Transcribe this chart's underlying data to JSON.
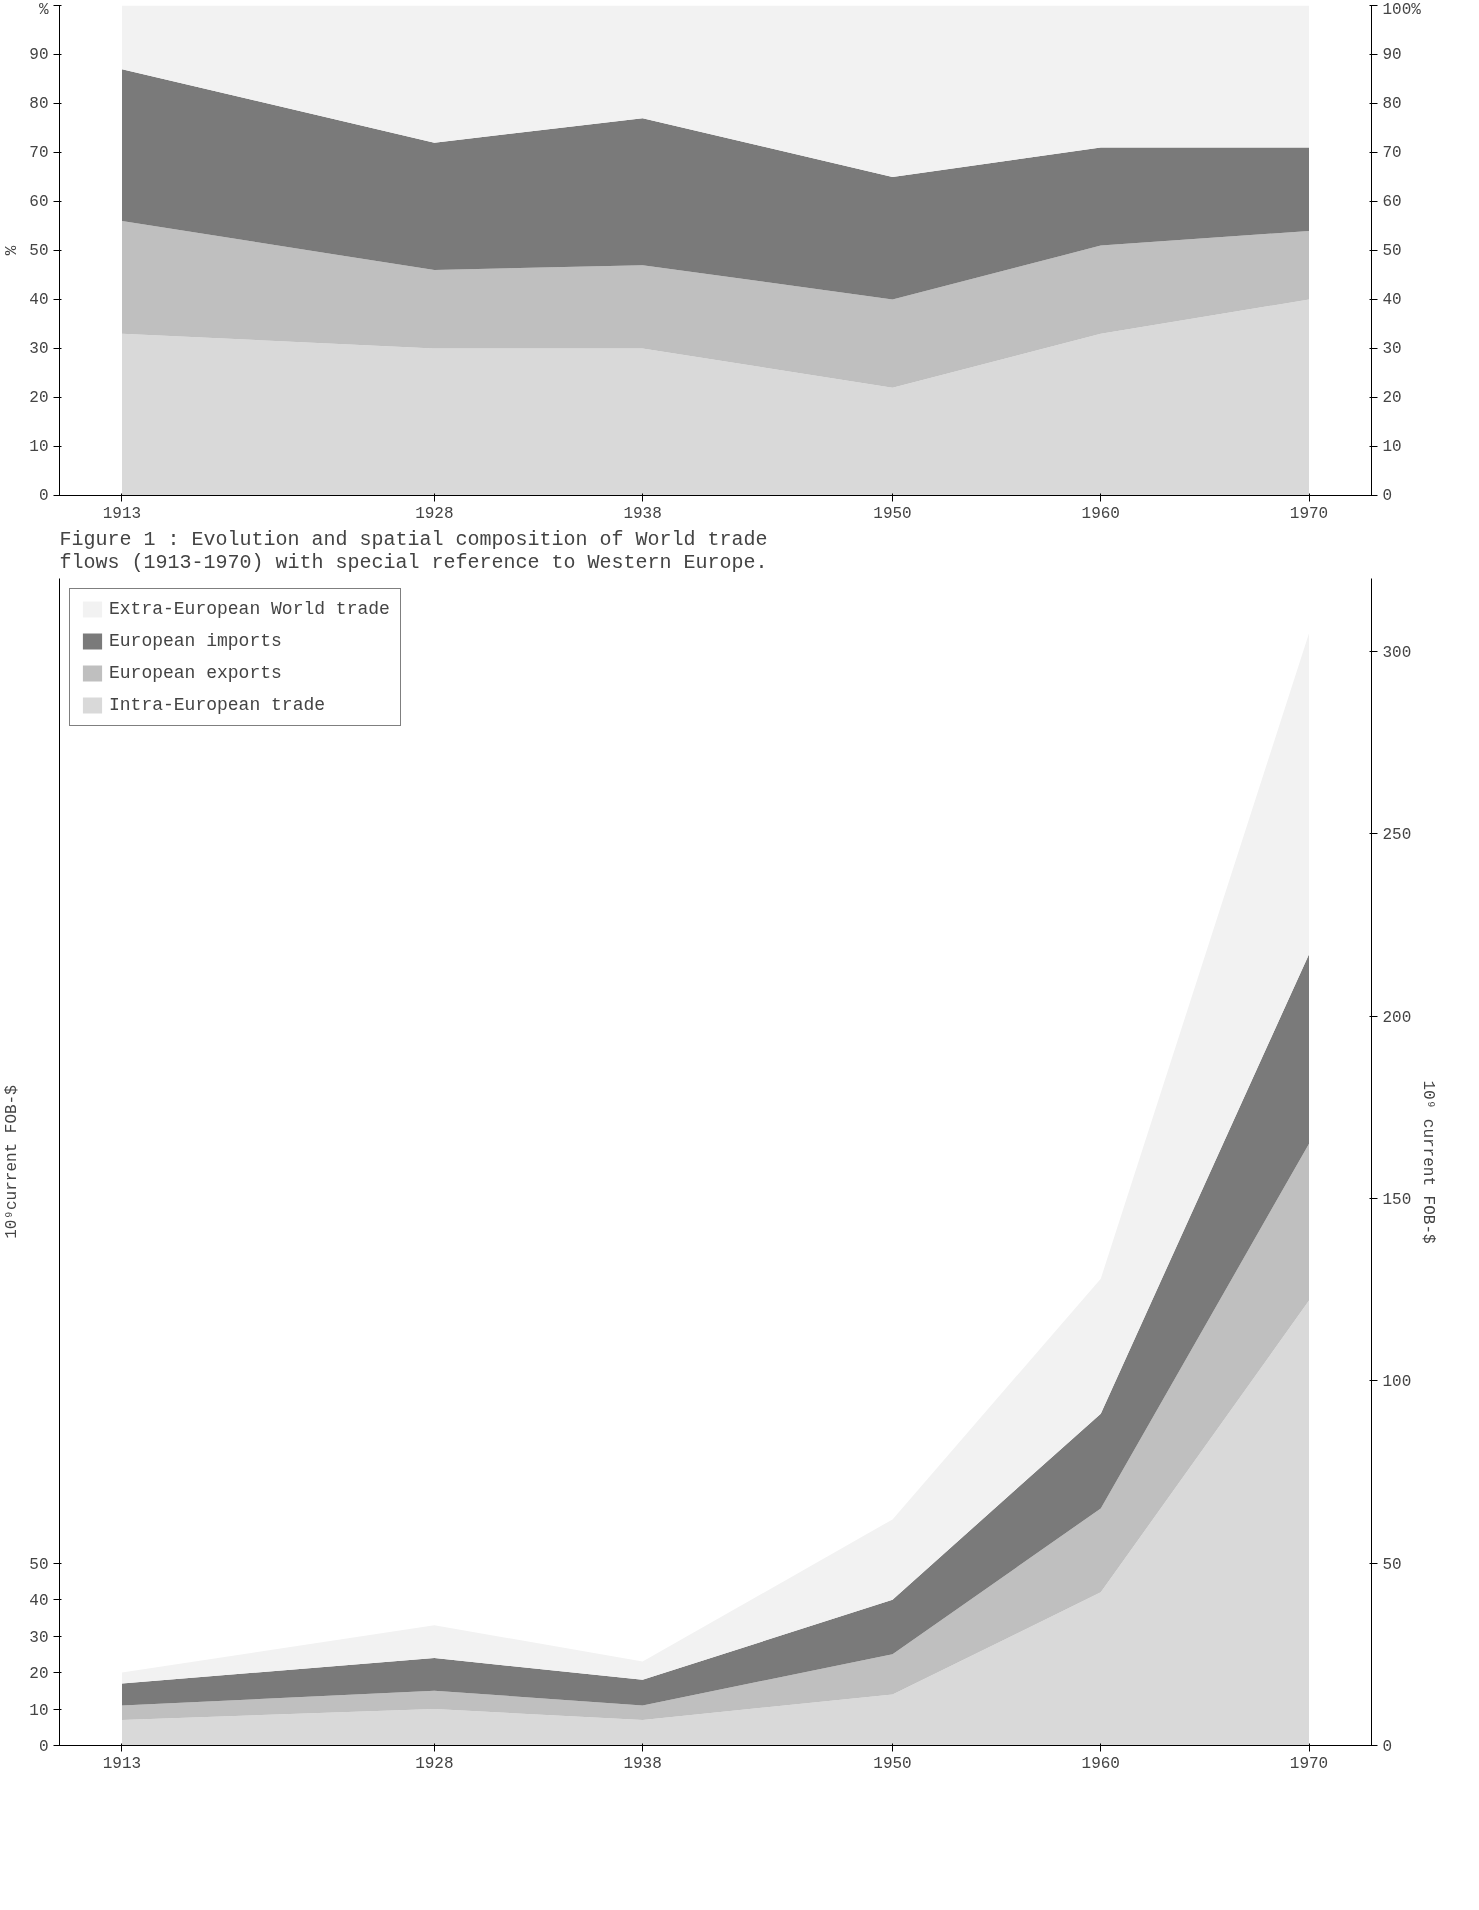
{
  "chart_data": [
    {
      "type": "area",
      "stacked": true,
      "ylabel": "%",
      "x": [
        1913,
        1928,
        1938,
        1950,
        1960,
        1970
      ],
      "xlim": [
        1910,
        1973
      ],
      "xticks": [
        1913,
        1928,
        1938,
        1950,
        1960,
        1970
      ],
      "ylim": [
        0,
        100
      ],
      "yticks": [
        0,
        10,
        20,
        30,
        40,
        50,
        60,
        70,
        80,
        90,
        {
          "value": 100,
          "label": "%"
        }
      ],
      "y2lim": [
        0,
        100
      ],
      "y2ticks": [
        0,
        10,
        20,
        30,
        40,
        50,
        60,
        70,
        80,
        90,
        {
          "value": 100,
          "label": "100%"
        }
      ],
      "grid": false,
      "legend": false,
      "series": [
        {
          "color": "#d9d9d9",
          "values": [
            33,
            30,
            30,
            22,
            33,
            40
          ]
        },
        {
          "color": "#bfbfbf",
          "values": [
            23,
            16,
            17,
            18,
            18,
            14
          ]
        },
        {
          "color": "#7a7a7a",
          "values": [
            31,
            26,
            30,
            25,
            20,
            17
          ]
        },
        {
          "color": "#f2f2f2",
          "values": [
            13,
            28,
            23,
            35,
            29,
            29
          ]
        }
      ]
    },
    {
      "type": "area",
      "stacked": true,
      "title": "Figure 1 : Evolution and spatial composition of World trade flows (1913-1970) with special reference to Western Europe.",
      "ylabel": "10⁹current FOB-$",
      "y2label": "10⁹ current FOB-$",
      "x": [
        1913,
        1928,
        1938,
        1950,
        1960,
        1970
      ],
      "xlim": [
        1910,
        1973
      ],
      "xticks": [
        1913,
        1928,
        1938,
        1950,
        1960,
        1970
      ],
      "ylim": [
        0,
        320
      ],
      "yticks": [
        0,
        10,
        20,
        30,
        40,
        50
      ],
      "y2lim": [
        0,
        320
      ],
      "y2ticks": [
        0,
        50,
        100,
        150,
        200,
        250,
        300
      ],
      "grid": false,
      "legend": "top left",
      "series": [
        {
          "name": "Intra-European trade",
          "color": "#d9d9d9",
          "values": [
            7,
            10,
            7,
            14,
            42,
            122
          ]
        },
        {
          "name": "European exports",
          "color": "#bfbfbf",
          "values": [
            4,
            5,
            4,
            11,
            23,
            43
          ]
        },
        {
          "name": "European imports",
          "color": "#7a7a7a",
          "values": [
            6,
            9,
            7,
            15,
            26,
            52
          ]
        },
        {
          "name": "Extra-European World trade",
          "color": "#f2f2f2",
          "values": [
            3,
            9,
            5,
            22,
            37,
            88
          ]
        }
      ]
    }
  ]
}
